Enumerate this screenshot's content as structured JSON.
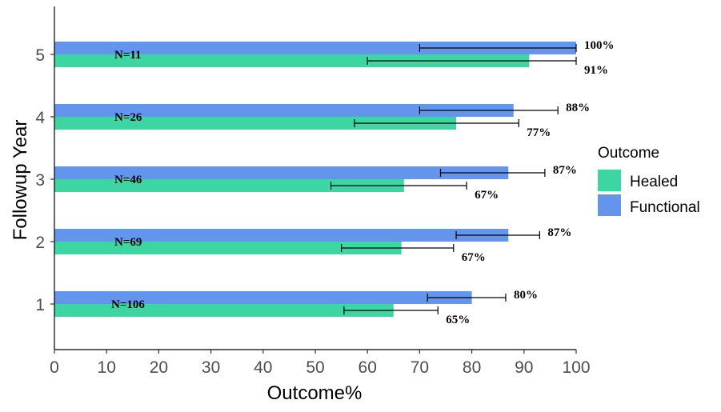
{
  "chart_data": {
    "type": "bar",
    "orientation": "horizontal",
    "categories": [
      "1",
      "2",
      "3",
      "4",
      "5"
    ],
    "series": [
      {
        "name": "Functional",
        "color": "#6495ED",
        "values": [
          80,
          87,
          87,
          88,
          100
        ],
        "error_low": [
          71.5,
          77,
          74,
          70,
          70
        ],
        "error_high": [
          86.5,
          93,
          94,
          96.5,
          100
        ],
        "value_labels": [
          "80%",
          "87%",
          "87%",
          "88%",
          "100%"
        ]
      },
      {
        "name": "Healed",
        "color": "#3DD6A3",
        "values": [
          65,
          66.5,
          67,
          77,
          91
        ],
        "error_low": [
          55.5,
          55,
          53,
          57.5,
          60
        ],
        "error_high": [
          73.5,
          76.5,
          79,
          89,
          100
        ],
        "value_labels": [
          "65%",
          "67%",
          "67%",
          "77%",
          "91%"
        ]
      }
    ],
    "n_labels": [
      "N=106",
      "N=69",
      "N=46",
      "N=26",
      "N=11"
    ],
    "xlabel": "Outcome%",
    "ylabel": "Followup Year",
    "xlim": [
      0,
      100
    ],
    "xticks": [
      "0",
      "10",
      "20",
      "30",
      "40",
      "50",
      "60",
      "70",
      "80",
      "90",
      "100"
    ],
    "legend": {
      "title": "Outcome",
      "position": "right",
      "items": [
        {
          "label": "Healed",
          "color": "#3DD6A3"
        },
        {
          "label": "Functional",
          "color": "#6495ED"
        }
      ]
    },
    "grid": false
  }
}
